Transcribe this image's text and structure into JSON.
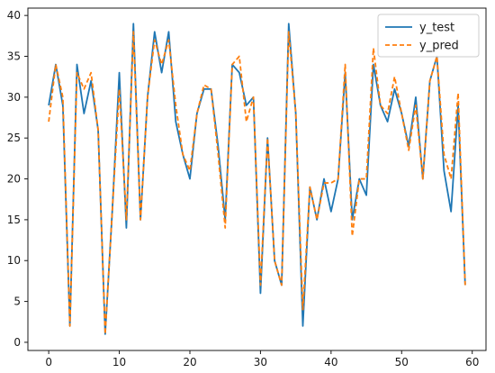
{
  "chart_data": {
    "type": "line",
    "title": "",
    "xlabel": "",
    "ylabel": "",
    "xlim": [
      -2.95,
      61.95
    ],
    "ylim": [
      -1.0,
      40.9
    ],
    "xticks": [
      0,
      10,
      20,
      30,
      40,
      50,
      60
    ],
    "yticks": [
      0,
      5,
      10,
      15,
      20,
      25,
      30,
      35,
      40
    ],
    "grid": false,
    "legend_position": "top-right",
    "x": [
      0,
      1,
      2,
      3,
      4,
      5,
      6,
      7,
      8,
      9,
      10,
      11,
      12,
      13,
      14,
      15,
      16,
      17,
      18,
      19,
      20,
      21,
      22,
      23,
      24,
      25,
      26,
      27,
      28,
      29,
      30,
      31,
      32,
      33,
      34,
      35,
      36,
      37,
      38,
      39,
      40,
      41,
      42,
      43,
      44,
      45,
      46,
      47,
      48,
      49,
      50,
      51,
      52,
      53,
      54,
      55,
      56,
      57,
      58,
      59
    ],
    "series": [
      {
        "name": "y_test",
        "color": "#1f77b4",
        "style": "solid",
        "values": [
          29,
          34,
          29,
          2,
          34,
          28,
          32,
          26,
          1,
          16,
          33,
          14,
          39,
          15,
          30,
          38,
          33,
          38,
          27,
          23,
          20,
          28,
          31,
          31,
          24,
          15,
          34,
          33,
          29,
          30,
          6,
          25,
          10,
          7,
          39,
          28,
          2,
          19,
          15,
          20,
          16,
          20,
          33,
          15,
          20,
          18,
          34,
          29,
          27,
          31,
          28,
          24,
          30,
          20,
          32,
          35,
          21,
          16,
          29,
          7
        ]
      },
      {
        "name": "y_pred",
        "color": "#ff7f0e",
        "style": "dashed",
        "values": [
          27,
          34,
          30,
          2,
          33,
          31,
          33,
          26,
          1,
          16,
          31,
          15,
          38,
          15,
          30,
          37,
          34,
          37,
          29,
          23,
          21,
          28,
          31.5,
          31,
          23,
          14,
          34,
          35,
          27,
          30,
          7,
          25,
          10,
          7,
          38,
          28,
          4,
          19,
          15,
          19.5,
          19.5,
          20,
          34,
          13,
          20,
          20,
          36,
          29,
          28,
          32.5,
          28,
          23.5,
          29,
          20,
          32,
          35,
          23,
          20,
          30.5,
          7
        ]
      }
    ]
  }
}
